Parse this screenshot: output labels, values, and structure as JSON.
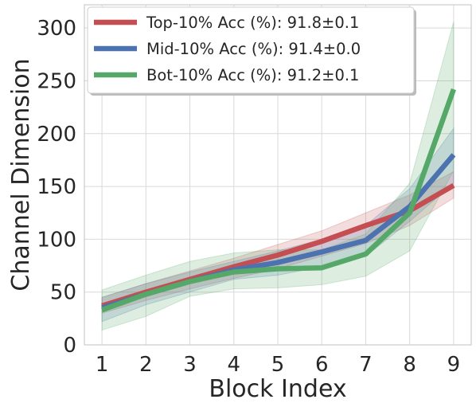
{
  "chart_data": {
    "type": "line",
    "x": [
      1,
      2,
      3,
      4,
      5,
      6,
      7,
      8,
      9
    ],
    "xlabel": "Block Index",
    "ylabel": "Channel Dimension",
    "xticks": [
      "1",
      "2",
      "3",
      "4",
      "5",
      "6",
      "7",
      "8",
      "9"
    ],
    "yticks": [
      "0",
      "50",
      "100",
      "150",
      "200",
      "250",
      "300"
    ],
    "xlim": [
      0.6,
      9.4
    ],
    "ylim": [
      0,
      322
    ],
    "grid": true,
    "legend_position": "top-left",
    "series": [
      {
        "name": "Top-10% Acc (%): 91.8±0.1",
        "color": "#c44e52",
        "values": [
          37,
          50,
          62,
          74,
          85,
          98,
          113,
          127,
          151
        ],
        "lower": [
          30,
          42,
          53,
          63,
          72,
          84,
          96,
          113,
          139
        ],
        "upper": [
          45,
          58,
          70,
          82,
          95,
          108,
          125,
          142,
          164
        ]
      },
      {
        "name": "Mid-10% Acc (%): 91.4±0.0",
        "color": "#4c72b0",
        "values": [
          35,
          48,
          60,
          71,
          78,
          88,
          99,
          131,
          180
        ],
        "lower": [
          22,
          38,
          50,
          62,
          66,
          74,
          84,
          117,
          153
        ],
        "upper": [
          45,
          58,
          69,
          79,
          89,
          100,
          113,
          148,
          205
        ]
      },
      {
        "name": "Bot-10% Acc (%): 91.2±0.1",
        "color": "#55a868",
        "values": [
          33,
          48,
          60,
          69,
          72,
          73,
          86,
          125,
          242
        ],
        "lower": [
          14,
          27,
          46,
          53,
          54,
          57,
          65,
          89,
          165
        ],
        "upper": [
          52,
          66,
          79,
          87,
          90,
          90,
          105,
          153,
          306
        ]
      }
    ]
  }
}
